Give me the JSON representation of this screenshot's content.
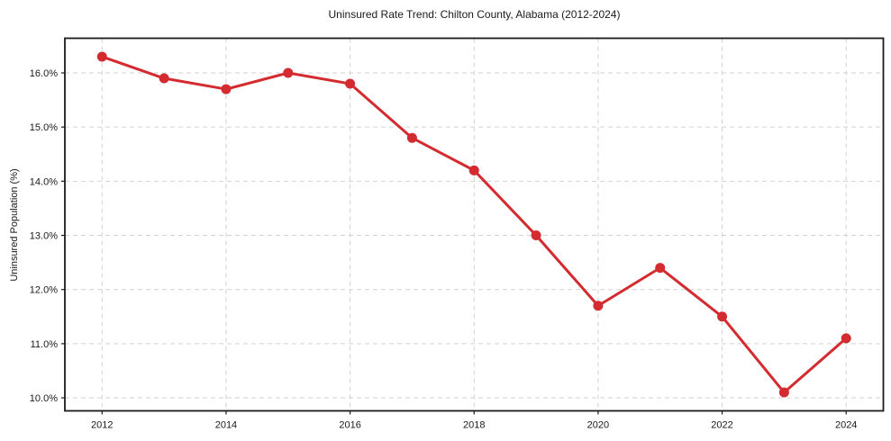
{
  "page": {
    "background_color": "#ffffff"
  },
  "chart_data": {
    "type": "line",
    "title": "Uninsured Rate Trend: Chilton County, Alabama (2012-2024)",
    "xlabel": "",
    "ylabel": "Uninsured Population (%)",
    "x": [
      2012,
      2013,
      2014,
      2015,
      2016,
      2017,
      2018,
      2019,
      2020,
      2021,
      2022,
      2023,
      2024
    ],
    "values": [
      16.3,
      15.9,
      15.7,
      16.0,
      15.8,
      14.8,
      14.2,
      13.0,
      11.7,
      12.4,
      11.5,
      10.1,
      11.1
    ],
    "xticks": [
      2012,
      2014,
      2016,
      2018,
      2020,
      2022,
      2024
    ],
    "xtick_labels": [
      "2012",
      "2014",
      "2016",
      "2018",
      "2020",
      "2022",
      "2024"
    ],
    "yticks": [
      10,
      11,
      12,
      13,
      14,
      15,
      16
    ],
    "ytick_labels": [
      "10.0%",
      "11.0%",
      "12.0%",
      "13.0%",
      "14.0%",
      "15.0%",
      "16.0%"
    ],
    "xlim": [
      2011.4,
      2024.6
    ],
    "ylim": [
      9.76,
      16.64
    ],
    "grid": true,
    "grid_style": "dashed",
    "legend": "none",
    "line_color": "#d32b2f",
    "marker": "circle"
  }
}
